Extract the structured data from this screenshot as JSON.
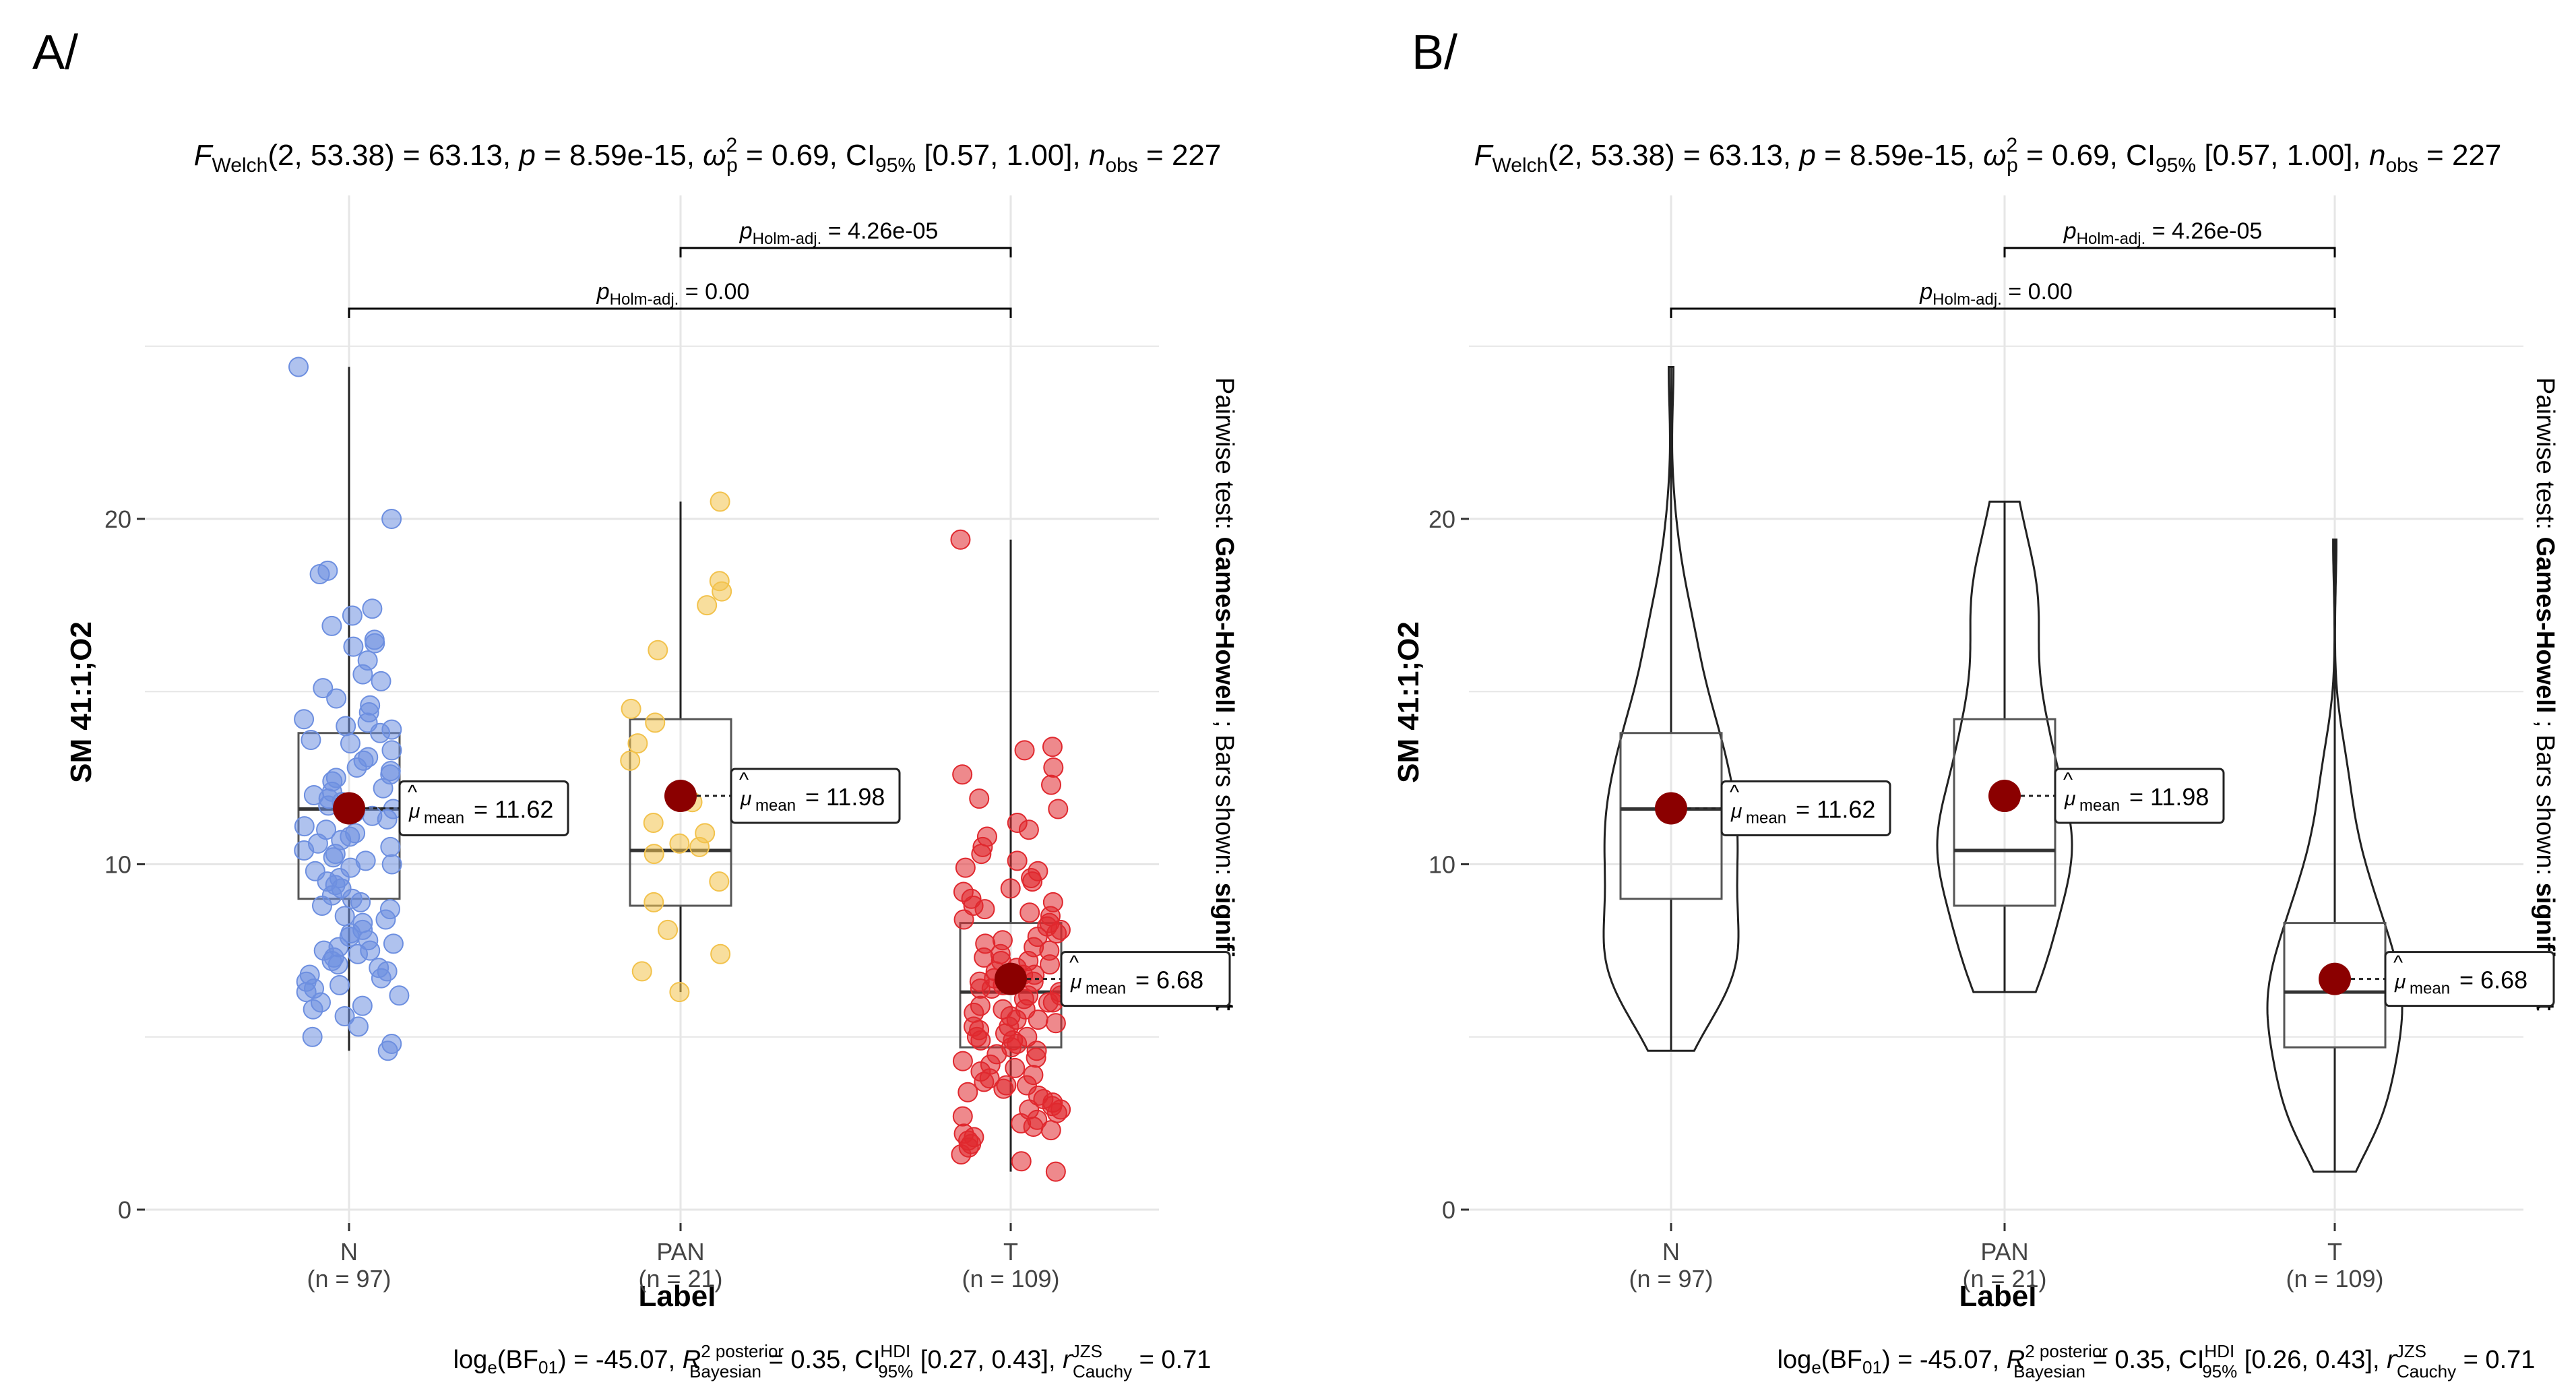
{
  "panels": [
    {
      "panel_label": "A/",
      "stats_top": "F_Welch(2, 53.38) = 63.13, p = 8.59e-15, ω̂²_p = 0.69, CI95% [0.57, 1.00], n_obs = 227",
      "stats_bottom": "loge(BF01) = -45.07, R̂² posterior Bayesian = 0.35, CI HDI 95% [0.27, 0.43], r JZS Cauchy = 0.71",
      "side_note": "Pairwise test: Games-Howell ; Bars shown: significant"
    },
    {
      "panel_label": "B/",
      "stats_top": "F_Welch(2, 53.38) = 63.13, p = 8.59e-15, ω̂²_p = 0.69, CI95% [0.57, 1.00], n_obs = 227",
      "stats_bottom": "loge(BF01) = -45.07, R̂² posterior Bayesian = 0.35, CI HDI 95% [0.26, 0.43], r JZS Cauchy = 0.71",
      "side_note": "Pairwise test: Games-Howell ; Bars shown: significant"
    }
  ],
  "colors": {
    "N": "#6d8fe0",
    "PAN": "#f2c24c",
    "T": "#e0282e",
    "mean": "#8b0000",
    "grid": "#e6e6e6"
  },
  "chart_data": [
    {
      "type": "boxplot-scatter",
      "xlabel": "Label",
      "ylabel": "SM 41:1;O2",
      "ylim": [
        0,
        25
      ],
      "yticks": [
        0,
        10,
        20
      ],
      "grid": true,
      "categories": [
        "N",
        "PAN",
        "T"
      ],
      "counts": [
        "(n = 97)",
        "(n = 21)",
        "(n = 109)"
      ],
      "means": [
        11.62,
        11.98,
        6.68
      ],
      "mean_labels": [
        "= 11.62",
        "= 11.98",
        "= 6.68"
      ],
      "boxes": [
        {
          "q1": 9.0,
          "median": 11.6,
          "q3": 13.8,
          "min": 4.6,
          "max": 24.4
        },
        {
          "q1": 8.8,
          "median": 10.4,
          "q3": 14.2,
          "min": 6.3,
          "max": 20.5
        },
        {
          "q1": 4.7,
          "median": 6.3,
          "q3": 8.3,
          "min": 1.1,
          "max": 19.4
        }
      ],
      "points": {
        "N": [
          24.4,
          20.0,
          18.5,
          18.4,
          17.4,
          17.2,
          16.9,
          16.5,
          16.4,
          16.3,
          15.9,
          15.5,
          15.3,
          15.1,
          14.8,
          14.6,
          14.4,
          14.2,
          14.1,
          14.0,
          13.9,
          13.8,
          13.6,
          13.5,
          13.3,
          13.1,
          13.0,
          12.8,
          12.7,
          12.6,
          12.5,
          12.4,
          12.2,
          12.1,
          12.0,
          11.9,
          11.8,
          11.7,
          11.6,
          11.5,
          11.4,
          11.3,
          11.1,
          11.0,
          10.9,
          10.8,
          10.7,
          10.6,
          10.5,
          10.4,
          10.3,
          10.2,
          10.1,
          10.0,
          9.9,
          9.8,
          9.6,
          9.5,
          9.4,
          9.3,
          9.1,
          9.0,
          8.9,
          8.8,
          8.7,
          8.5,
          8.4,
          8.3,
          8.1,
          8.0,
          7.9,
          7.8,
          7.7,
          7.6,
          7.5,
          7.5,
          7.4,
          7.3,
          7.2,
          7.1,
          7.0,
          6.9,
          6.8,
          6.7,
          6.6,
          6.5,
          6.4,
          6.3,
          6.2,
          6.0,
          5.9,
          5.8,
          5.6,
          5.3,
          5.0,
          4.8,
          4.6
        ],
        "PAN": [
          20.5,
          18.2,
          17.9,
          17.5,
          16.2,
          14.5,
          14.1,
          13.5,
          13.0,
          11.8,
          11.2,
          10.9,
          10.6,
          10.5,
          10.3,
          9.5,
          8.9,
          8.1,
          7.4,
          6.9,
          6.3
        ],
        "T": [
          19.4,
          13.4,
          13.3,
          12.8,
          12.6,
          12.3,
          11.9,
          11.6,
          11.2,
          11.0,
          10.8,
          10.5,
          10.3,
          10.1,
          9.9,
          9.8,
          9.6,
          9.5,
          9.3,
          9.2,
          9.0,
          8.9,
          8.8,
          8.6,
          8.5,
          8.4,
          8.3,
          8.2,
          8.1,
          8.0,
          7.9,
          7.8,
          7.7,
          7.6,
          7.5,
          7.4,
          7.3,
          7.2,
          7.1,
          7.0,
          6.9,
          6.8,
          6.8,
          6.7,
          6.6,
          6.5,
          6.4,
          6.4,
          6.3,
          6.2,
          6.1,
          6.0,
          6.0,
          5.9,
          5.8,
          5.7,
          5.6,
          5.5,
          5.5,
          5.4,
          5.3,
          5.2,
          5.1,
          5.0,
          5.0,
          4.9,
          4.8,
          4.7,
          4.6,
          4.5,
          4.4,
          4.3,
          4.2,
          4.1,
          4.0,
          3.9,
          3.8,
          3.7,
          3.6,
          3.5,
          3.4,
          3.3,
          3.2,
          3.1,
          3.0,
          2.9,
          2.8,
          2.7,
          2.6,
          2.5,
          2.4,
          2.3,
          2.2,
          2.1,
          2.0,
          1.9,
          1.8,
          1.6,
          1.4,
          1.1,
          6.6,
          5.3,
          4.9,
          7.2,
          8.7,
          3.6,
          2.9,
          5.8,
          6.2
        ]
      },
      "brackets": [
        {
          "from": "PAN",
          "to": "T",
          "label": "= 4.26e-05"
        },
        {
          "from": "N",
          "to": "T",
          "label": "= 0.00"
        }
      ]
    },
    {
      "type": "violin-box",
      "xlabel": "Label",
      "ylabel": "SM 41:1;O2",
      "ylim": [
        0,
        25
      ],
      "yticks": [
        0,
        10,
        20
      ],
      "grid": true,
      "categories": [
        "N",
        "PAN",
        "T"
      ],
      "counts": [
        "(n = 97)",
        "(n = 21)",
        "(n = 109)"
      ],
      "means": [
        11.62,
        11.98,
        6.68
      ],
      "mean_labels": [
        "= 11.62",
        "= 11.98",
        "= 6.68"
      ],
      "boxes": [
        {
          "q1": 9.0,
          "median": 11.6,
          "q3": 13.8,
          "min": 4.6,
          "max": 24.4
        },
        {
          "q1": 8.8,
          "median": 10.4,
          "q3": 14.2,
          "min": 6.3,
          "max": 20.5
        },
        {
          "q1": 4.7,
          "median": 6.3,
          "q3": 8.3,
          "min": 1.1,
          "max": 19.4
        }
      ],
      "brackets": [
        {
          "from": "PAN",
          "to": "T",
          "label": "= 4.26e-05"
        },
        {
          "from": "N",
          "to": "T",
          "label": "= 0.00"
        }
      ]
    }
  ]
}
